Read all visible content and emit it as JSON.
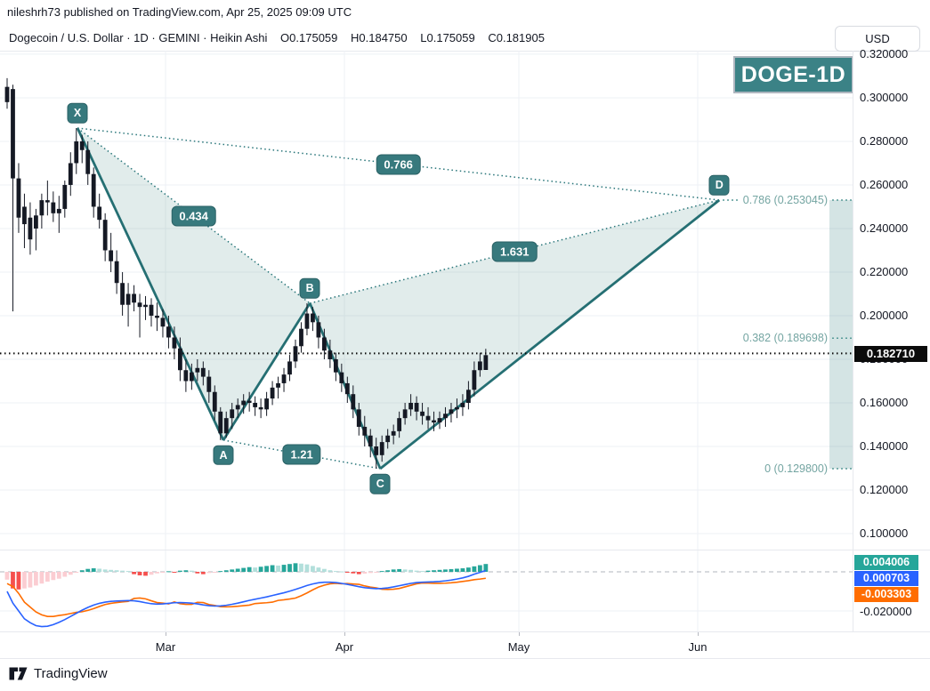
{
  "page": {
    "published_line": "nileshrh73 published on TradingView.com, Apr 25, 2025 09:09 UTC",
    "watermark": "DOGE-1D",
    "currency_button": "USD",
    "logo_text": "TradingView"
  },
  "header": {
    "title": "Dogecoin / U.S. Dollar · 1D · GEMINI · Heikin Ashi",
    "ohlc": {
      "o": "O0.175059",
      "h": "H0.184750",
      "l": "L0.175059",
      "c": "C0.181905"
    }
  },
  "price_axis": {
    "ticks": [
      "0.320000",
      "0.300000",
      "0.280000",
      "0.260000",
      "0.240000",
      "0.220000",
      "0.200000",
      "0.180000",
      "0.160000",
      "0.140000",
      "0.120000",
      "0.100000"
    ],
    "last_price_badge": "0.182710"
  },
  "time_axis": {
    "labels": [
      "Mar",
      "Apr",
      "May",
      "Jun"
    ]
  },
  "indicator_axis": {
    "badges": [
      {
        "label": "0.004006",
        "color": "#26a69a"
      },
      {
        "label": "0.000703",
        "color": "#2962ff"
      },
      {
        "label": "-0.003303",
        "color": "#ff6d00"
      }
    ],
    "tick": "-0.020000"
  },
  "chart_data": {
    "type": "candlestick",
    "title": "Dogecoin / U.S. Dollar, 1D, GEMINI, Heikin Ashi",
    "ylim": [
      0.0927,
      0.3221
    ],
    "last_price": 0.18271,
    "candle_color": "#151924",
    "candles": [
      [
        0.305,
        0.309,
        0.295,
        0.298
      ],
      [
        0.304,
        0.306,
        0.202,
        0.263
      ],
      [
        0.263,
        0.27,
        0.238,
        0.245
      ],
      [
        0.25,
        0.256,
        0.231,
        0.242
      ],
      [
        0.245,
        0.252,
        0.228,
        0.235
      ],
      [
        0.24,
        0.249,
        0.23,
        0.246
      ],
      [
        0.246,
        0.256,
        0.24,
        0.253
      ],
      [
        0.253,
        0.262,
        0.246,
        0.252
      ],
      [
        0.252,
        0.257,
        0.243,
        0.247
      ],
      [
        0.247,
        0.255,
        0.238,
        0.249
      ],
      [
        0.249,
        0.262,
        0.245,
        0.26
      ],
      [
        0.26,
        0.275,
        0.255,
        0.27
      ],
      [
        0.27,
        0.2861,
        0.265,
        0.28
      ],
      [
        0.28,
        0.283,
        0.27,
        0.276
      ],
      [
        0.276,
        0.28,
        0.26,
        0.265
      ],
      [
        0.265,
        0.268,
        0.245,
        0.25
      ],
      [
        0.25,
        0.256,
        0.24,
        0.244
      ],
      [
        0.244,
        0.247,
        0.225,
        0.23
      ],
      [
        0.23,
        0.238,
        0.22,
        0.225
      ],
      [
        0.225,
        0.23,
        0.21,
        0.215
      ],
      [
        0.215,
        0.22,
        0.2,
        0.205
      ],
      [
        0.205,
        0.215,
        0.195,
        0.21
      ],
      [
        0.21,
        0.214,
        0.202,
        0.206
      ],
      [
        0.206,
        0.21,
        0.19,
        0.204
      ],
      [
        0.204,
        0.209,
        0.198,
        0.205
      ],
      [
        0.205,
        0.208,
        0.195,
        0.2
      ],
      [
        0.2,
        0.206,
        0.193,
        0.199
      ],
      [
        0.199,
        0.203,
        0.19,
        0.195
      ],
      [
        0.195,
        0.2,
        0.185,
        0.19
      ],
      [
        0.19,
        0.195,
        0.18,
        0.185
      ],
      [
        0.185,
        0.19,
        0.17,
        0.175
      ],
      [
        0.175,
        0.18,
        0.165,
        0.17
      ],
      [
        0.17,
        0.178,
        0.166,
        0.174
      ],
      [
        0.174,
        0.18,
        0.17,
        0.176
      ],
      [
        0.176,
        0.179,
        0.168,
        0.172
      ],
      [
        0.172,
        0.175,
        0.16,
        0.165
      ],
      [
        0.165,
        0.168,
        0.152,
        0.156
      ],
      [
        0.156,
        0.158,
        0.1429,
        0.146
      ],
      [
        0.146,
        0.156,
        0.144,
        0.153
      ],
      [
        0.153,
        0.16,
        0.148,
        0.157
      ],
      [
        0.157,
        0.162,
        0.153,
        0.159
      ],
      [
        0.159,
        0.164,
        0.155,
        0.161
      ],
      [
        0.161,
        0.165,
        0.156,
        0.16
      ],
      [
        0.16,
        0.163,
        0.154,
        0.158
      ],
      [
        0.158,
        0.162,
        0.153,
        0.157
      ],
      [
        0.157,
        0.165,
        0.154,
        0.162
      ],
      [
        0.162,
        0.17,
        0.159,
        0.167
      ],
      [
        0.167,
        0.172,
        0.162,
        0.169
      ],
      [
        0.169,
        0.176,
        0.165,
        0.173
      ],
      [
        0.173,
        0.182,
        0.17,
        0.179
      ],
      [
        0.179,
        0.189,
        0.176,
        0.186
      ],
      [
        0.186,
        0.197,
        0.183,
        0.194
      ],
      [
        0.194,
        0.2057,
        0.191,
        0.201
      ],
      [
        0.201,
        0.204,
        0.193,
        0.197
      ],
      [
        0.197,
        0.2,
        0.185,
        0.19
      ],
      [
        0.19,
        0.194,
        0.18,
        0.184
      ],
      [
        0.184,
        0.189,
        0.176,
        0.18
      ],
      [
        0.18,
        0.183,
        0.17,
        0.174
      ],
      [
        0.174,
        0.178,
        0.165,
        0.169
      ],
      [
        0.169,
        0.172,
        0.16,
        0.164
      ],
      [
        0.164,
        0.168,
        0.153,
        0.157
      ],
      [
        0.157,
        0.16,
        0.145,
        0.149
      ],
      [
        0.149,
        0.154,
        0.14,
        0.145
      ],
      [
        0.145,
        0.148,
        0.135,
        0.14
      ],
      [
        0.14,
        0.144,
        0.1298,
        0.136
      ],
      [
        0.136,
        0.145,
        0.133,
        0.142
      ],
      [
        0.142,
        0.148,
        0.139,
        0.145
      ],
      [
        0.145,
        0.15,
        0.141,
        0.147
      ],
      [
        0.147,
        0.156,
        0.144,
        0.153
      ],
      [
        0.153,
        0.16,
        0.15,
        0.157
      ],
      [
        0.157,
        0.164,
        0.154,
        0.16
      ],
      [
        0.16,
        0.163,
        0.152,
        0.156
      ],
      [
        0.156,
        0.16,
        0.15,
        0.154
      ],
      [
        0.154,
        0.158,
        0.148,
        0.152
      ],
      [
        0.152,
        0.156,
        0.147,
        0.151
      ],
      [
        0.151,
        0.156,
        0.148,
        0.153
      ],
      [
        0.153,
        0.158,
        0.149,
        0.155
      ],
      [
        0.155,
        0.16,
        0.151,
        0.157
      ],
      [
        0.157,
        0.162,
        0.153,
        0.158
      ],
      [
        0.158,
        0.164,
        0.154,
        0.16
      ],
      [
        0.16,
        0.17,
        0.157,
        0.166
      ],
      [
        0.166,
        0.179,
        0.163,
        0.175
      ],
      [
        0.175,
        0.183,
        0.172,
        0.179
      ],
      [
        0.1751,
        0.1848,
        0.1751,
        0.1819
      ]
    ],
    "pattern": {
      "name": "XABCD",
      "color": "#29767a",
      "fill": "rgba(41,118,115,0.14)",
      "points": [
        {
          "name": "X",
          "bar": 12.2,
          "price": 0.2861,
          "side": "above"
        },
        {
          "name": "A",
          "bar": 37.5,
          "price": 0.1429,
          "side": "below"
        },
        {
          "name": "B",
          "bar": 52.5,
          "price": 0.2057,
          "side": "above"
        },
        {
          "name": "C",
          "bar": 64.7,
          "price": 0.1298,
          "side": "below"
        },
        {
          "name": "D",
          "bar": 123.5,
          "price": 0.253045,
          "side": "above"
        }
      ],
      "solid_segments": [
        [
          "X",
          "A"
        ],
        [
          "A",
          "B"
        ],
        [
          "B",
          "C"
        ],
        [
          "C",
          "D"
        ]
      ],
      "dotted_segments": [
        [
          "X",
          "B"
        ],
        [
          "X",
          "D"
        ],
        [
          "B",
          "D"
        ],
        [
          "A",
          "C"
        ]
      ],
      "fills": [
        [
          "X",
          "A",
          "B"
        ],
        [
          "B",
          "C",
          "D"
        ]
      ],
      "ratios": [
        {
          "text": "0.434",
          "from": "X",
          "to": "B"
        },
        {
          "text": "0.766",
          "from": "X",
          "to": "D"
        },
        {
          "text": "1.631",
          "from": "B",
          "to": "D"
        },
        {
          "text": "1.21",
          "from": "A",
          "to": "C"
        }
      ]
    },
    "fib": {
      "band_color": "rgba(42,122,121,0.20)",
      "levels": [
        {
          "label": "0.786 (0.253045)",
          "price": 0.253045
        },
        {
          "label": "0.382 (0.189698)",
          "price": 0.189698
        },
        {
          "label": "0 (0.129800)",
          "price": 0.1298
        }
      ]
    },
    "macd": {
      "colors": {
        "hist_up": "#26a69a",
        "hist_up_weak": "#b2dfdb",
        "hist_down": "#f5504e",
        "hist_down_weak": "#fbcdd2",
        "macd_line": "#2962ff",
        "signal_line": "#ff6d00"
      },
      "hist": [
        -0.004,
        -0.0085,
        -0.009,
        -0.0085,
        -0.008,
        -0.007,
        -0.006,
        -0.005,
        -0.0042,
        -0.0035,
        -0.0025,
        -0.0015,
        -0.0005,
        0.0008,
        0.0015,
        0.0018,
        0.0016,
        0.0012,
        0.001,
        0.0008,
        0.0006,
        0.0004,
        -0.0012,
        -0.0018,
        -0.002,
        -0.0015,
        -0.0008,
        -0.0004,
        0.0003,
        -0.0004,
        0.0006,
        0.0008,
        0.0006,
        -0.0008,
        -0.0012,
        -0.0006,
        -0.0003,
        0.0004,
        0.0008,
        0.0012,
        0.0016,
        0.002,
        0.0024,
        0.0022,
        0.0026,
        0.003,
        0.0034,
        0.0032,
        0.0036,
        0.004,
        0.0044,
        0.0042,
        0.0038,
        0.003,
        0.0022,
        0.0015,
        0.0008,
        0.0004,
        0.0002,
        -0.0004,
        -0.0008,
        -0.0012,
        -0.0009,
        -0.0006,
        -0.0004,
        0.0004,
        0.0008,
        0.0012,
        0.0014,
        0.0012,
        0.001,
        0.0006,
        0.0004,
        0.0006,
        0.0008,
        0.001,
        0.0012,
        0.0014,
        0.0016,
        0.0018,
        0.0022,
        0.0028,
        0.0034,
        0.004006
      ],
      "macd": [
        -0.01,
        -0.016,
        -0.02,
        -0.024,
        -0.026,
        -0.0275,
        -0.028,
        -0.0278,
        -0.027,
        -0.0258,
        -0.0244,
        -0.0228,
        -0.0212,
        -0.0196,
        -0.0182,
        -0.017,
        -0.0161,
        -0.0155,
        -0.0151,
        -0.0149,
        -0.0148,
        -0.0147,
        -0.0148,
        -0.0152,
        -0.0158,
        -0.0163,
        -0.0165,
        -0.0164,
        -0.0161,
        -0.0158,
        -0.0157,
        -0.0158,
        -0.016,
        -0.0164,
        -0.0169,
        -0.0173,
        -0.0175,
        -0.0174,
        -0.0171,
        -0.0166,
        -0.016,
        -0.0153,
        -0.0146,
        -0.014,
        -0.0134,
        -0.0128,
        -0.0121,
        -0.0114,
        -0.0107,
        -0.0099,
        -0.009,
        -0.008,
        -0.007,
        -0.0062,
        -0.0056,
        -0.0053,
        -0.0053,
        -0.0055,
        -0.0059,
        -0.0064,
        -0.007,
        -0.0076,
        -0.0081,
        -0.0084,
        -0.0086,
        -0.0085,
        -0.0082,
        -0.0077,
        -0.0071,
        -0.0065,
        -0.0059,
        -0.0055,
        -0.0053,
        -0.0052,
        -0.0051,
        -0.0049,
        -0.0046,
        -0.0042,
        -0.0037,
        -0.0031,
        -0.0023,
        -0.0012,
        -0.0003,
        0.000703
      ],
      "values": {
        "hist": 0.004006,
        "macd": 0.000703,
        "signal": -0.003303
      }
    }
  }
}
